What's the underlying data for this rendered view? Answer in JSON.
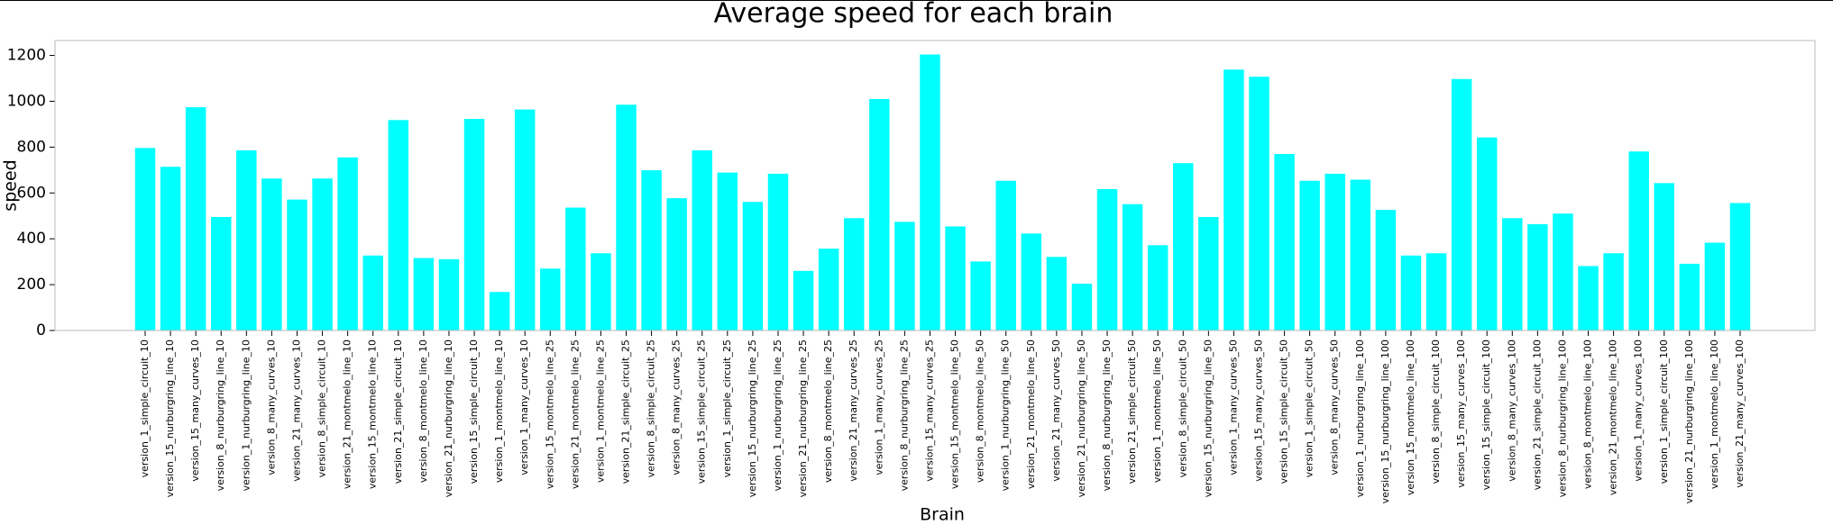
{
  "chart_data": {
    "type": "bar",
    "title": "Average speed for each brain",
    "x_label": "Brain",
    "y_label": "speed",
    "categories": [
      "version_1_simple_circuit_10",
      "version_15_nurburgring_line_10",
      "version_15_many_curves_10",
      "version_8_nurburgring_line_10",
      "version_1_nurburgring_line_10",
      "version_8_many_curves_10",
      "version_21_many_curves_10",
      "version_8_simple_circuit_10",
      "version_21_montmelo_line_10",
      "version_15_montmelo_line_10",
      "version_21_simple_circuit_10",
      "version_8_montmelo_line_10",
      "version_21_nurburgring_line_10",
      "version_15_simple_circuit_10",
      "version_1_montmelo_line_10",
      "version_1_many_curves_10",
      "version_15_montmelo_line_25",
      "version_21_montmelo_line_25",
      "version_1_montmelo_line_25",
      "version_21_simple_circuit_25",
      "version_8_simple_circuit_25",
      "version_8_many_curves_25",
      "version_15_simple_circuit_25",
      "version_1_simple_circuit_25",
      "version_15_nurburgring_line_25",
      "version_1_nurburgring_line_25",
      "version_21_nurburgring_line_25",
      "version_8_montmelo_line_25",
      "version_21_many_curves_25",
      "version_1_many_curves_25",
      "version_8_nurburgring_line_25",
      "version_15_many_curves_25",
      "version_15_montmelo_line_50",
      "version_8_montmelo_line_50",
      "version_1_nurburgring_line_50",
      "version_21_montmelo_line_50",
      "version_21_many_curves_50",
      "version_21_nurburgring_line_50",
      "version_8_nurburgring_line_50",
      "version_21_simple_circuit_50",
      "version_1_montmelo_line_50",
      "version_8_simple_circuit_50",
      "version_15_nurburgring_line_50",
      "version_1_many_curves_50",
      "version_15_many_curves_50",
      "version_15_simple_circuit_50",
      "version_1_simple_circuit_50",
      "version_8_many_curves_50",
      "version_1_nurburgring_line_100",
      "version_15_nurburgring_line_100",
      "version_15_montmelo_line_100",
      "version_8_simple_circuit_100",
      "version_15_many_curves_100",
      "version_15_simple_circuit_100",
      "version_8_many_curves_100",
      "version_21_simple_circuit_100",
      "version_8_nurburgring_line_100",
      "version_8_montmelo_line_100",
      "version_21_montmelo_line_100",
      "version_1_many_curves_100",
      "version_1_simple_circuit_100",
      "version_21_nurburgring_line_100",
      "version_1_montmelo_line_100",
      "version_21_many_curves_100"
    ],
    "values": [
      796,
      714,
      974,
      495,
      786,
      663,
      571,
      663,
      755,
      327,
      918,
      316,
      311,
      923,
      168,
      964,
      270,
      536,
      337,
      985,
      699,
      577,
      786,
      689,
      561,
      684,
      260,
      357,
      490,
      1010,
      474,
      1204,
      454,
      301,
      653,
      423,
      321,
      204,
      617,
      551,
      372,
      730,
      495,
      1138,
      1107,
      770,
      653,
      684,
      658,
      526,
      327,
      337,
      1097,
      842,
      490,
      464,
      510,
      281,
      337,
      781,
      643,
      291,
      383,
      556
    ],
    "color": "#00ffff",
    "ylim": [
      0,
      1265
    ],
    "yticks": [
      0,
      200,
      400,
      600,
      800,
      1000,
      1200
    ],
    "grid": false
  }
}
